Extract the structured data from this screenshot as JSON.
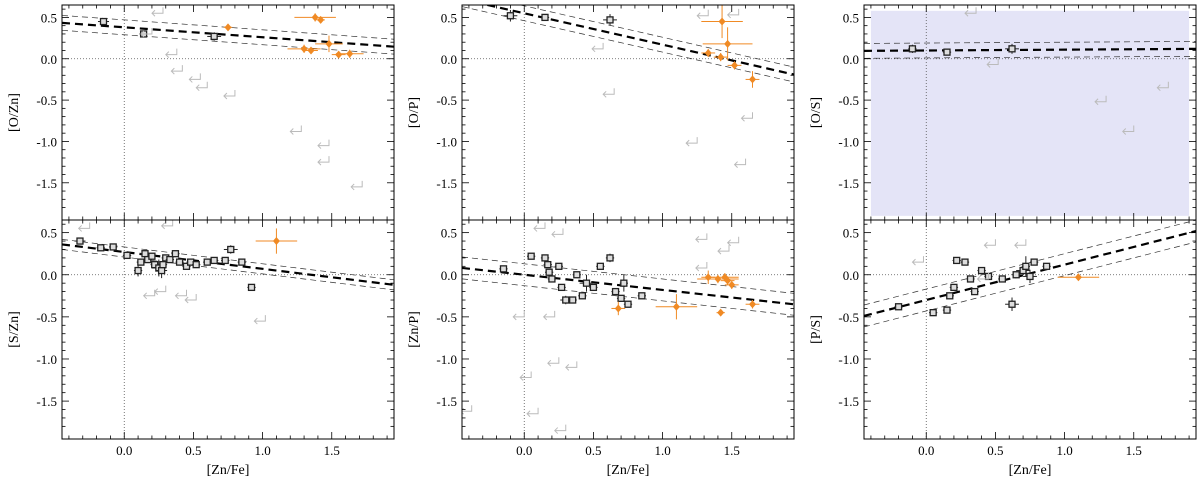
{
  "colors": {
    "detection": "#222222",
    "dla": "#f08a24",
    "limit": "#bbbbbb",
    "shade": "#e4e4f7",
    "axis": "#000000"
  },
  "chart_data": [
    {
      "type": "scatter",
      "id": "o-zn",
      "ylabel": "[O/Zn]",
      "xlabel": "",
      "xlim": [
        -0.45,
        1.95
      ],
      "ylim": [
        -1.95,
        0.65
      ],
      "yticks": [
        0.5,
        0.0,
        -0.5,
        -1.0,
        -1.5
      ],
      "ytick_labels": [
        "0.5",
        "0.0",
        "-0.5",
        "-1.0",
        "-1.5"
      ],
      "xticks": [
        0.0,
        0.5,
        1.0,
        1.5
      ],
      "xtick_labels": [],
      "fit": {
        "slope": -0.12,
        "intercept": 0.38,
        "band": 0.09
      },
      "shade": null,
      "series": [
        {
          "name": "detections",
          "points": [
            [
              -0.15,
              0.45,
              0.04,
              0.04
            ],
            [
              0.14,
              0.3,
              0.03,
              0.03
            ],
            [
              0.65,
              0.27,
              0.05,
              0.05
            ]
          ]
        },
        {
          "name": "orange",
          "points": [
            [
              0.75,
              0.38,
              0.03,
              0.03
            ],
            [
              1.38,
              0.5,
              0.15,
              0.05
            ],
            [
              1.42,
              0.47,
              0.03,
              0.03
            ],
            [
              1.3,
              0.12,
              0.12,
              0.05
            ],
            [
              1.35,
              0.1,
              0.05,
              0.03
            ],
            [
              1.48,
              0.18,
              0.1,
              0.1
            ],
            [
              1.55,
              0.05,
              0.05,
              0.03
            ],
            [
              1.63,
              0.06,
              0.1,
              0.05
            ]
          ]
        },
        {
          "name": "limits",
          "points": [
            [
              0.28,
              0.55
            ],
            [
              0.2,
              0.3
            ],
            [
              0.38,
              0.05
            ],
            [
              0.42,
              -0.15
            ],
            [
              0.55,
              -0.25
            ],
            [
              0.6,
              -0.35
            ],
            [
              0.8,
              -0.45
            ],
            [
              1.28,
              -0.88
            ],
            [
              1.48,
              -1.05
            ],
            [
              1.48,
              -1.25
            ],
            [
              1.72,
              -1.55
            ]
          ]
        }
      ]
    },
    {
      "type": "scatter",
      "id": "o-p",
      "ylabel": "[O/P]",
      "xlabel": "",
      "xlim": [
        -0.45,
        1.95
      ],
      "ylim": [
        -1.95,
        0.65
      ],
      "yticks": [
        0.5,
        0.0,
        -0.5,
        -1.0,
        -1.5
      ],
      "ytick_labels": [
        "0.5",
        "0.0",
        "-0.5",
        "-1.0",
        "-1.5"
      ],
      "xticks": [
        0.0,
        0.5,
        1.0,
        1.5
      ],
      "xtick_labels": [],
      "fit": {
        "slope": -0.38,
        "intercept": 0.55,
        "band": 0.09
      },
      "shade": null,
      "series": [
        {
          "name": "detections",
          "points": [
            [
              -0.1,
              0.52,
              0.05,
              0.07
            ],
            [
              0.15,
              0.5,
              0.03,
              0.03
            ],
            [
              0.62,
              0.47,
              0.05,
              0.07
            ]
          ]
        },
        {
          "name": "orange",
          "points": [
            [
              1.43,
              0.45,
              0.15,
              0.2
            ],
            [
              1.47,
              0.18,
              0.18,
              0.2
            ],
            [
              1.33,
              0.07,
              0.05,
              0.05
            ],
            [
              1.42,
              0.02,
              0.05,
              0.05
            ],
            [
              1.52,
              -0.08,
              0.05,
              0.05
            ],
            [
              1.65,
              -0.25,
              0.05,
              0.1
            ]
          ]
        },
        {
          "name": "limits",
          "points": [
            [
              0.65,
              -0.43
            ],
            [
              1.25,
              -1.02
            ],
            [
              1.33,
              0.52
            ],
            [
              1.55,
              0.53
            ],
            [
              0.57,
              0.12
            ],
            [
              1.65,
              -0.72
            ],
            [
              1.6,
              -1.28
            ]
          ]
        }
      ]
    },
    {
      "type": "scatter",
      "id": "o-s",
      "ylabel": "[O/S]",
      "xlabel": "",
      "xlim": [
        -0.45,
        1.95
      ],
      "ylim": [
        -1.95,
        0.65
      ],
      "yticks": [
        0.5,
        0.0,
        -0.5,
        -1.0,
        -1.5
      ],
      "ytick_labels": [
        "0.5",
        "0.0",
        "-0.5",
        "-1.0",
        "-1.5"
      ],
      "xticks": [
        0.0,
        0.5,
        1.0,
        1.5
      ],
      "xtick_labels": [],
      "fit": {
        "slope": 0.01,
        "intercept": 0.1,
        "band": 0.09
      },
      "shade": [
        -0.4,
        1.9,
        -1.9,
        0.58
      ],
      "series": [
        {
          "name": "detections",
          "points": [
            [
              -0.1,
              0.12,
              0.03,
              0.05
            ],
            [
              0.15,
              0.08,
              0.03,
              0.03
            ],
            [
              0.62,
              0.12,
              0.05,
              0.06
            ]
          ]
        },
        {
          "name": "orange",
          "points": []
        },
        {
          "name": "limits",
          "points": [
            [
              0.36,
              0.55
            ],
            [
              0.52,
              -0.07
            ],
            [
              1.3,
              -0.52
            ],
            [
              1.5,
              -0.88
            ],
            [
              1.75,
              -0.35
            ]
          ]
        }
      ]
    },
    {
      "type": "scatter",
      "id": "s-zn",
      "ylabel": "[S/Zn]",
      "xlabel": "[Zn/Fe]",
      "xlim": [
        -0.45,
        1.95
      ],
      "ylim": [
        -1.95,
        0.65
      ],
      "yticks": [
        0.5,
        0.0,
        -0.5,
        -1.0,
        -1.5
      ],
      "ytick_labels": [
        "0.5",
        "0.0",
        "-0.5",
        "-1.0",
        "-1.5"
      ],
      "xticks": [
        0.0,
        0.5,
        1.0,
        1.5
      ],
      "xtick_labels": [
        "0.0",
        "0.5",
        "1.0",
        "1.5"
      ],
      "fit": {
        "slope": -0.2,
        "intercept": 0.27,
        "band": 0.06
      },
      "shade": null,
      "series": [
        {
          "name": "detections",
          "points": [
            [
              -0.32,
              0.4,
              0.04,
              0.03
            ],
            [
              -0.17,
              0.32,
              0.03,
              0.03
            ],
            [
              -0.08,
              0.33,
              0.03,
              0.03
            ],
            [
              0.02,
              0.23,
              0.03,
              0.03
            ],
            [
              0.1,
              0.05,
              0.03,
              0.07
            ],
            [
              0.12,
              0.15,
              0.03,
              0.03
            ],
            [
              0.15,
              0.25,
              0.04,
              0.04
            ],
            [
              0.17,
              0.18,
              0.03,
              0.03
            ],
            [
              0.2,
              0.22,
              0.03,
              0.03
            ],
            [
              0.22,
              0.12,
              0.03,
              0.03
            ],
            [
              0.25,
              0.08,
              0.05,
              0.1
            ],
            [
              0.27,
              0.05,
              0.04,
              0.09
            ],
            [
              0.28,
              0.12,
              0.03,
              0.04
            ],
            [
              0.3,
              0.2,
              0.03,
              0.03
            ],
            [
              0.33,
              0.18,
              0.03,
              0.03
            ],
            [
              0.37,
              0.25,
              0.03,
              0.03
            ],
            [
              0.4,
              0.15,
              0.03,
              0.04
            ],
            [
              0.45,
              0.1,
              0.03,
              0.03
            ],
            [
              0.48,
              0.15,
              0.03,
              0.03
            ],
            [
              0.52,
              0.12,
              0.03,
              0.03
            ],
            [
              0.6,
              0.15,
              0.03,
              0.03
            ],
            [
              0.65,
              0.17,
              0.03,
              0.03
            ],
            [
              0.73,
              0.17,
              0.03,
              0.03
            ],
            [
              0.77,
              0.3,
              0.05,
              0.05
            ],
            [
              0.85,
              0.15,
              0.03,
              0.03
            ],
            [
              0.92,
              -0.15,
              0.03,
              0.03
            ]
          ]
        },
        {
          "name": "orange",
          "points": [
            [
              1.1,
              0.4,
              0.15,
              0.15
            ]
          ]
        },
        {
          "name": "limits",
          "points": [
            [
              -0.25,
              0.55
            ],
            [
              0.35,
              0.58
            ],
            [
              0.3,
              -0.2
            ],
            [
              0.45,
              -0.25
            ],
            [
              0.52,
              -0.3
            ],
            [
              0.22,
              -0.25
            ],
            [
              1.02,
              -0.55
            ]
          ]
        }
      ]
    },
    {
      "type": "scatter",
      "id": "zn-p",
      "ylabel": "[Zn/P]",
      "xlabel": "[Zn/Fe]",
      "xlim": [
        -0.45,
        1.95
      ],
      "ylim": [
        -1.95,
        0.65
      ],
      "yticks": [
        0.5,
        0.0,
        -0.5,
        -1.0,
        -1.5
      ],
      "ytick_labels": [
        "0.5",
        "0.0",
        "-0.5",
        "-1.0",
        "-1.5"
      ],
      "xticks": [
        0.0,
        0.5,
        1.0,
        1.5
      ],
      "xtick_labels": [
        "0.0",
        "0.5",
        "1.0",
        "1.5"
      ],
      "fit": {
        "slope": -0.18,
        "intercept": 0.0,
        "band": 0.13
      },
      "shade": null,
      "series": [
        {
          "name": "detections",
          "points": [
            [
              -0.15,
              0.07,
              0.03,
              0.04
            ],
            [
              0.05,
              0.22,
              0.03,
              0.03
            ],
            [
              0.15,
              0.2,
              0.03,
              0.03
            ],
            [
              0.17,
              0.12,
              0.03,
              0.03
            ],
            [
              0.18,
              0.03,
              0.03,
              0.03
            ],
            [
              0.2,
              -0.05,
              0.03,
              0.03
            ],
            [
              0.25,
              0.1,
              0.03,
              0.03
            ],
            [
              0.27,
              -0.15,
              0.03,
              0.03
            ],
            [
              0.3,
              -0.3,
              0.04,
              0.05
            ],
            [
              0.35,
              -0.3,
              0.03,
              0.03
            ],
            [
              0.38,
              0.0,
              0.03,
              0.03
            ],
            [
              0.42,
              -0.25,
              0.03,
              0.03
            ],
            [
              0.45,
              -0.1,
              0.05,
              0.1
            ],
            [
              0.5,
              -0.15,
              0.03,
              0.03
            ],
            [
              0.55,
              0.1,
              0.03,
              0.03
            ],
            [
              0.62,
              0.2,
              0.03,
              0.05
            ],
            [
              0.66,
              -0.2,
              0.03,
              0.03
            ],
            [
              0.7,
              -0.28,
              0.03,
              0.03
            ],
            [
              0.72,
              -0.1,
              0.03,
              0.1
            ],
            [
              0.75,
              -0.35,
              0.03,
              0.03
            ],
            [
              0.85,
              -0.25,
              0.03,
              0.03
            ]
          ]
        },
        {
          "name": "orange",
          "points": [
            [
              0.68,
              -0.4,
              0.05,
              0.08
            ],
            [
              1.1,
              -0.38,
              0.15,
              0.15
            ],
            [
              1.33,
              -0.03,
              0.05,
              0.08
            ],
            [
              1.4,
              -0.05,
              0.15,
              0.05
            ],
            [
              1.45,
              -0.03,
              0.1,
              0.05
            ],
            [
              1.47,
              -0.07,
              0.05,
              0.05
            ],
            [
              1.5,
              -0.12,
              0.05,
              0.05
            ],
            [
              1.42,
              -0.45,
              0.03,
              0.03
            ],
            [
              1.65,
              -0.35,
              0.05,
              0.05
            ]
          ]
        },
        {
          "name": "limits",
          "points": [
            [
              0.15,
              0.55
            ],
            [
              0.28,
              0.48
            ],
            [
              1.32,
              0.42
            ],
            [
              1.55,
              0.38
            ],
            [
              1.48,
              0.28
            ],
            [
              1.32,
              0.08
            ],
            [
              0.22,
              -0.5
            ],
            [
              -0.0,
              -0.5
            ],
            [
              0.25,
              -1.05
            ],
            [
              0.05,
              -1.22
            ],
            [
              0.38,
              -1.1
            ],
            [
              0.1,
              -1.65
            ],
            [
              0.3,
              -1.85
            ],
            [
              -0.38,
              -1.62
            ]
          ]
        }
      ]
    },
    {
      "type": "scatter",
      "id": "p-s",
      "ylabel": "[P/S]",
      "xlabel": "[Zn/Fe]",
      "xlim": [
        -0.45,
        1.95
      ],
      "ylim": [
        -1.95,
        0.65
      ],
      "yticks": [
        0.5,
        0.0,
        -0.5,
        -1.0,
        -1.5
      ],
      "ytick_labels": [
        "0.5",
        "0.0",
        "-0.5",
        "-1.0",
        "-1.5"
      ],
      "xticks": [
        0.0,
        0.5,
        1.0,
        1.5
      ],
      "xtick_labels": [
        "0.0",
        "0.5",
        "1.0",
        "1.5"
      ],
      "fit": {
        "slope": 0.42,
        "intercept": -0.3,
        "band": 0.13
      },
      "shade": null,
      "series": [
        {
          "name": "detections",
          "points": [
            [
              -0.2,
              -0.38,
              0.03,
              0.03
            ],
            [
              0.05,
              -0.45,
              0.03,
              0.03
            ],
            [
              0.15,
              -0.42,
              0.03,
              0.03
            ],
            [
              0.17,
              -0.25,
              0.03,
              0.03
            ],
            [
              0.2,
              -0.15,
              0.03,
              0.03
            ],
            [
              0.22,
              0.17,
              0.03,
              0.03
            ],
            [
              0.28,
              0.15,
              0.03,
              0.03
            ],
            [
              0.32,
              -0.05,
              0.03,
              0.03
            ],
            [
              0.35,
              -0.2,
              0.03,
              0.03
            ],
            [
              0.4,
              0.05,
              0.03,
              0.03
            ],
            [
              0.45,
              -0.02,
              0.03,
              0.03
            ],
            [
              0.55,
              -0.05,
              0.03,
              0.03
            ],
            [
              0.62,
              -0.35,
              0.05,
              0.08
            ],
            [
              0.65,
              0.0,
              0.03,
              0.03
            ],
            [
              0.7,
              0.05,
              0.05,
              0.05
            ],
            [
              0.72,
              0.1,
              0.03,
              0.12
            ],
            [
              0.75,
              -0.02,
              0.05,
              0.08
            ],
            [
              0.78,
              0.15,
              0.03,
              0.03
            ],
            [
              0.87,
              0.1,
              0.03,
              0.03
            ]
          ]
        },
        {
          "name": "orange",
          "points": [
            [
              1.1,
              -0.03,
              0.15,
              0.02
            ]
          ]
        },
        {
          "name": "limits",
          "points": [
            [
              -0.02,
              0.15
            ],
            [
              0.5,
              0.35
            ],
            [
              0.72,
              0.35
            ],
            [
              0.45,
              -0.05
            ]
          ]
        }
      ]
    }
  ]
}
